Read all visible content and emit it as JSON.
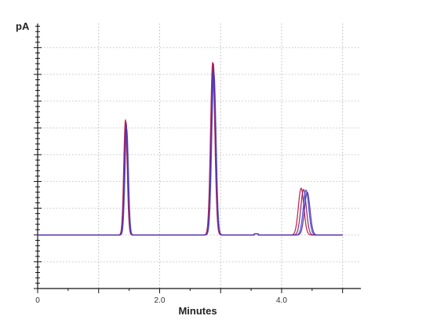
{
  "chart_data": {
    "type": "line",
    "xlabel": "Minutes",
    "ylabel": "pA",
    "x_tick_labels": [
      {
        "value": 0,
        "label": "0"
      },
      {
        "value": 2.0,
        "label": "2.0"
      },
      {
        "value": 4.0,
        "label": "4.0"
      }
    ],
    "xlim": [
      0,
      5.3
    ],
    "ylim": [
      -200,
      790
    ],
    "grid": true,
    "legend": "none",
    "baseline": 0,
    "series": [
      {
        "color": "#c0143c",
        "peaks": [
          {
            "rt": 1.44,
            "height": 430
          },
          {
            "rt": 2.87,
            "height": 645
          },
          {
            "rt": 4.32,
            "height": 175
          }
        ]
      },
      {
        "color": "#8a1f6e",
        "peaks": [
          {
            "rt": 1.45,
            "height": 420
          },
          {
            "rt": 2.88,
            "height": 640
          },
          {
            "rt": 4.36,
            "height": 170
          }
        ]
      },
      {
        "color": "#3a4fd0",
        "peaks": [
          {
            "rt": 1.46,
            "height": 395
          },
          {
            "rt": 2.89,
            "height": 605
          },
          {
            "rt": 4.4,
            "height": 168
          }
        ]
      },
      {
        "color": "#5a2da8",
        "peaks": [
          {
            "rt": 1.45,
            "height": 410
          },
          {
            "rt": 2.88,
            "height": 620
          },
          {
            "rt": 4.42,
            "height": 160
          }
        ]
      }
    ]
  }
}
